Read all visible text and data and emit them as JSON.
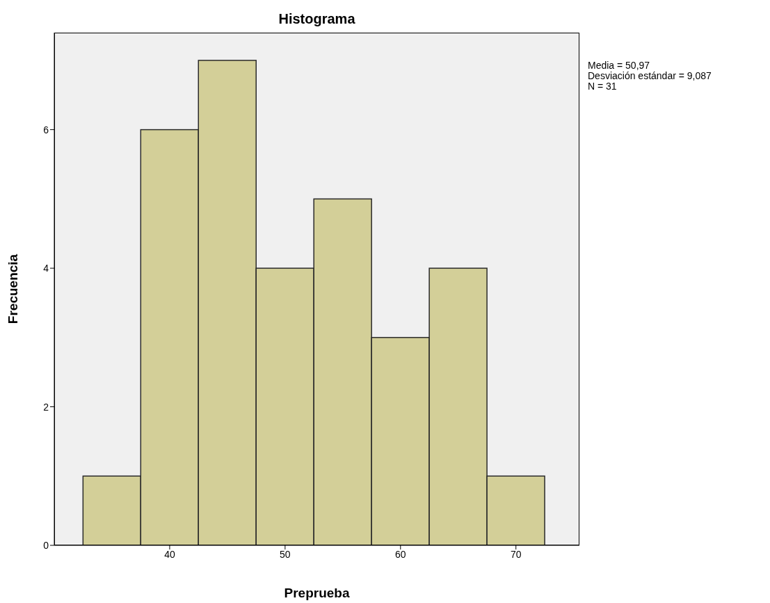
{
  "chart_data": {
    "type": "histogram",
    "title": "Histograma",
    "xlabel": "Preprueba",
    "ylabel": "Frecuencia",
    "bins": [
      32.5,
      37.5,
      42.5,
      47.5,
      52.5,
      57.5,
      62.5,
      67.5,
      72.5
    ],
    "values": [
      1,
      6,
      7,
      4,
      5,
      3,
      4,
      1
    ],
    "color": "#d3cf98",
    "xlim": [
      30,
      75.5
    ],
    "xticks": [
      40,
      50,
      60,
      70
    ],
    "ylim": [
      0,
      7.4
    ],
    "yticks": [
      0,
      2,
      4,
      6
    ],
    "grid": false,
    "legend": false,
    "annotations": [
      "Media = 50,97",
      "Desviación estándar = 9,087",
      "N = 31"
    ]
  }
}
